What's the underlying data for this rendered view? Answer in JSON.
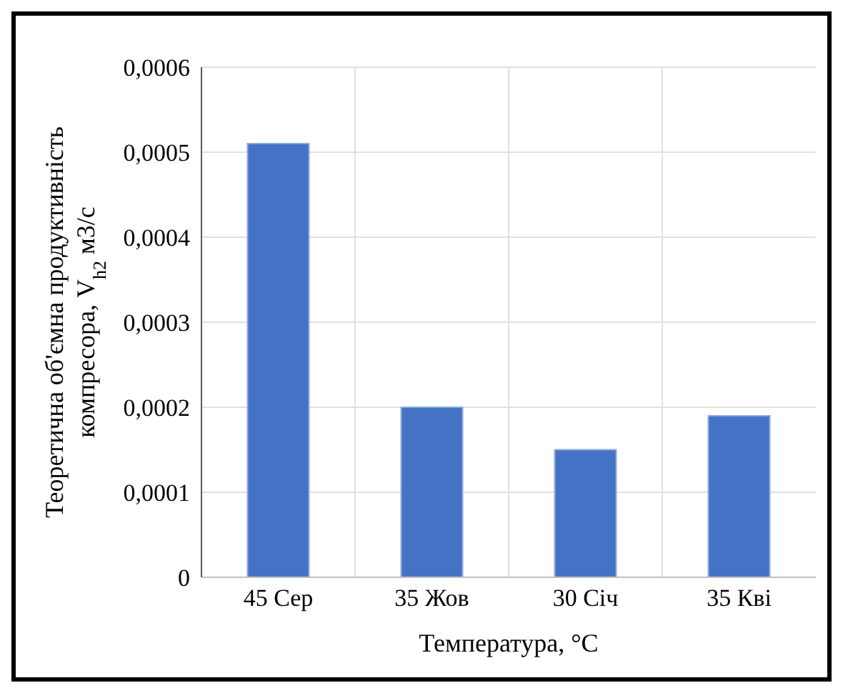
{
  "chart_data": {
    "type": "bar",
    "xlabel": "Температура, °C",
    "ylabel": "Теоретична об'ємна продуктивність компресора, V$_{h2}$ м3/с",
    "categories": [
      "45 Сер",
      "35 Жов",
      "30 Січ",
      "35 Кві"
    ],
    "values": [
      0.00051,
      0.0002,
      0.00015,
      0.00019
    ],
    "color": "#4472c4",
    "ylim": [
      0,
      0.0006
    ],
    "yticks": [
      {
        "value": 0,
        "label": "0"
      },
      {
        "value": 0.0001,
        "label": "0,0001"
      },
      {
        "value": 0.0002,
        "label": "0,0002"
      },
      {
        "value": 0.0003,
        "label": "0,0003"
      },
      {
        "value": 0.0004,
        "label": "0,0004"
      },
      {
        "value": 0.0005,
        "label": "0,0005"
      },
      {
        "value": 0.0006,
        "label": "0,0006"
      }
    ],
    "grid": true
  }
}
